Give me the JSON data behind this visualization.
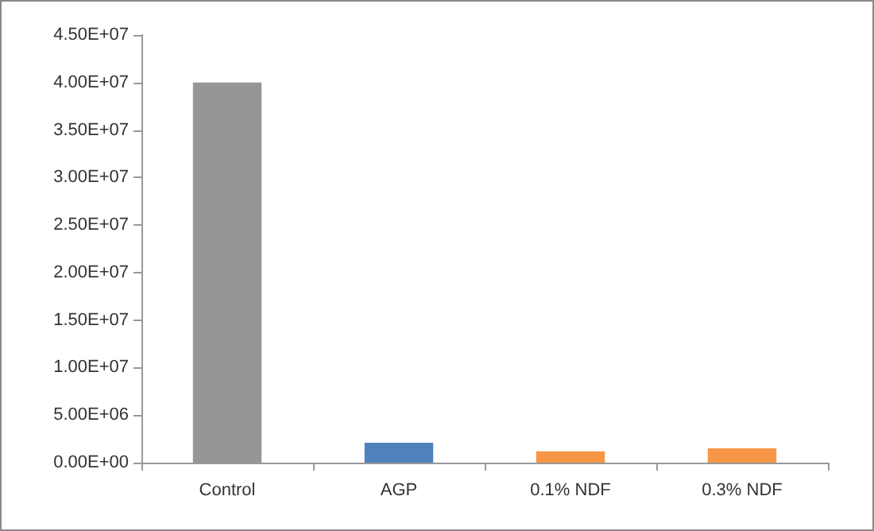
{
  "chart_data": {
    "type": "bar",
    "categories": [
      "Control",
      "AGP",
      "0.1% NDF",
      "0.3% NDF"
    ],
    "values": [
      40000000,
      2100000,
      1200000,
      1500000
    ],
    "colors": [
      "#969696",
      "#4f81bd",
      "#f79646",
      "#f79646"
    ],
    "ylim": [
      0,
      45000000
    ],
    "yticks": [
      {
        "value": 0,
        "label": "0.00E+00"
      },
      {
        "value": 5000000,
        "label": "5.00E+06"
      },
      {
        "value": 10000000,
        "label": "1.00E+07"
      },
      {
        "value": 15000000,
        "label": "1.50E+07"
      },
      {
        "value": 20000000,
        "label": "2.00E+07"
      },
      {
        "value": 25000000,
        "label": "2.50E+07"
      },
      {
        "value": 30000000,
        "label": "3.00E+07"
      },
      {
        "value": 35000000,
        "label": "3.50E+07"
      },
      {
        "value": 40000000,
        "label": "4.00E+07"
      },
      {
        "value": 45000000,
        "label": "4.50E+07"
      }
    ],
    "grid": false
  }
}
